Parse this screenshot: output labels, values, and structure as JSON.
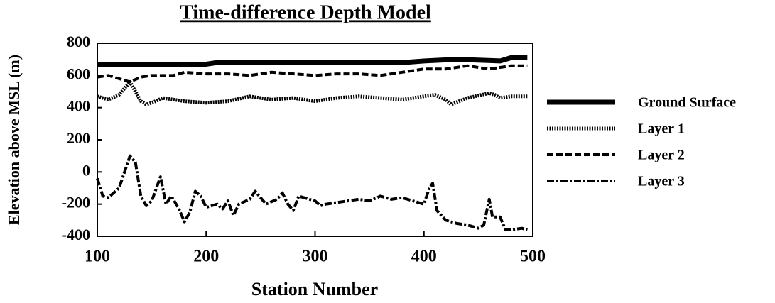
{
  "chart_data": {
    "type": "line",
    "title": "Time-difference  Depth  Model",
    "x_label": "Station Number",
    "y_label": "Elevation  above  MSL  (m)",
    "xlim": [
      100,
      500
    ],
    "xticks": [
      100,
      200,
      300,
      400,
      500
    ],
    "ylim": [
      -400,
      800
    ],
    "yticks": [
      -400,
      -200,
      0,
      200,
      400,
      600,
      800
    ],
    "legend": "right",
    "series": [
      {
        "name": "Ground Surface",
        "color": "#000000",
        "style": "solid",
        "x": [
          100,
          200,
          210,
          380,
          400,
          430,
          470,
          480,
          495
        ],
        "values": [
          670,
          670,
          680,
          680,
          690,
          700,
          690,
          710,
          710
        ]
      },
      {
        "name": "Layer 1",
        "color": "#000000",
        "style": "dotted",
        "x": [
          100,
          110,
          120,
          130,
          140,
          145,
          150,
          160,
          180,
          200,
          220,
          240,
          260,
          280,
          300,
          320,
          340,
          360,
          380,
          400,
          410,
          420,
          425,
          440,
          460,
          465,
          470,
          480,
          495
        ],
        "values": [
          470,
          450,
          480,
          560,
          440,
          420,
          430,
          460,
          440,
          430,
          440,
          470,
          450,
          460,
          440,
          460,
          470,
          460,
          450,
          470,
          480,
          450,
          420,
          460,
          490,
          480,
          460,
          470,
          470
        ]
      },
      {
        "name": "Layer 2",
        "color": "#000000",
        "style": "dashed",
        "x": [
          100,
          110,
          120,
          130,
          140,
          150,
          170,
          180,
          200,
          220,
          240,
          260,
          280,
          300,
          320,
          340,
          360,
          380,
          400,
          420,
          440,
          460,
          480,
          495
        ],
        "values": [
          590,
          600,
          580,
          560,
          590,
          600,
          600,
          620,
          610,
          610,
          600,
          620,
          610,
          600,
          610,
          610,
          600,
          620,
          640,
          640,
          660,
          640,
          660,
          660
        ]
      },
      {
        "name": "Layer 3",
        "color": "#000000",
        "style": "dashdot",
        "x": [
          100,
          105,
          110,
          120,
          130,
          135,
          140,
          145,
          150,
          158,
          163,
          168,
          175,
          180,
          185,
          190,
          195,
          200,
          210,
          215,
          220,
          225,
          230,
          240,
          245,
          255,
          265,
          270,
          275,
          280,
          285,
          290,
          300,
          305,
          310,
          320,
          330,
          340,
          350,
          360,
          370,
          380,
          390,
          400,
          405,
          408,
          412,
          420,
          430,
          440,
          450,
          455,
          460,
          463,
          470,
          475,
          480,
          490,
          495
        ],
        "values": [
          -40,
          -150,
          -160,
          -100,
          100,
          60,
          -150,
          -210,
          -180,
          -30,
          -200,
          -150,
          -230,
          -310,
          -250,
          -120,
          -150,
          -220,
          -200,
          -230,
          -180,
          -270,
          -200,
          -170,
          -120,
          -200,
          -170,
          -130,
          -200,
          -240,
          -150,
          -160,
          -180,
          -210,
          -200,
          -190,
          -180,
          -170,
          -180,
          -150,
          -170,
          -160,
          -180,
          -200,
          -100,
          -70,
          -240,
          -300,
          -320,
          -330,
          -350,
          -330,
          -170,
          -280,
          -280,
          -360,
          -360,
          -350,
          -360
        ]
      }
    ]
  }
}
